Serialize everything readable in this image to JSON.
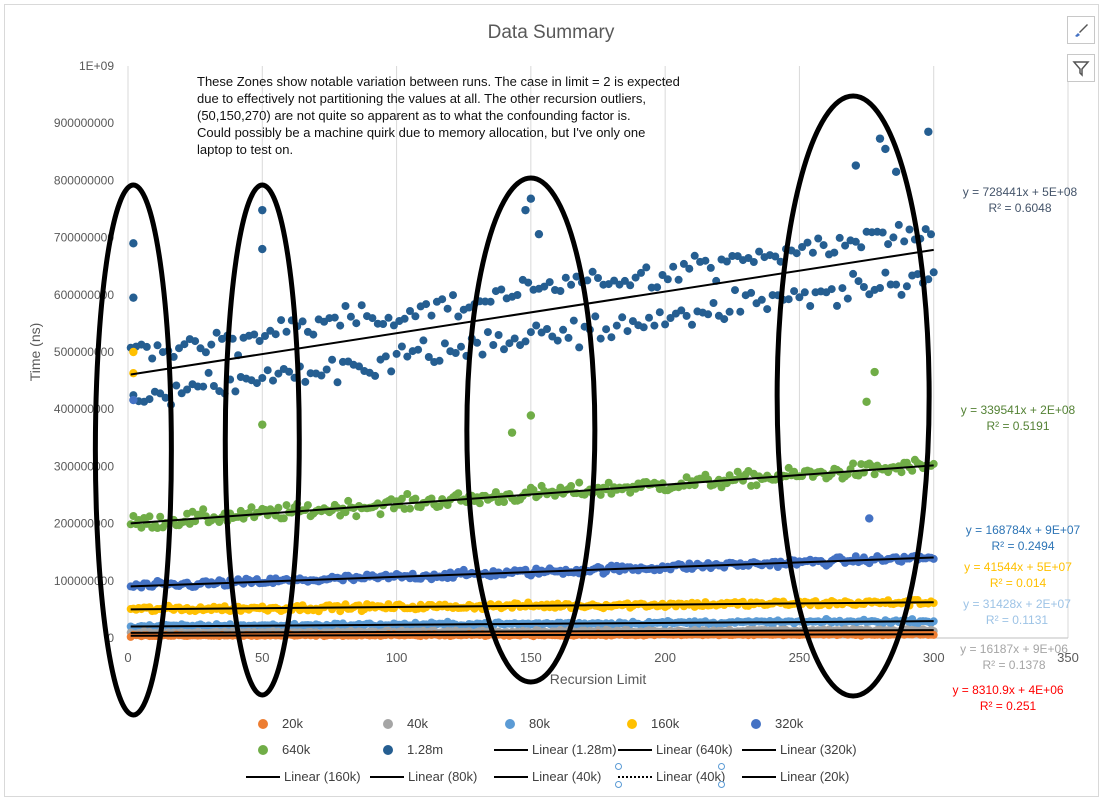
{
  "chart_data": {
    "type": "scatter",
    "title": "Data Summary",
    "xlabel": "Recursion Limit",
    "ylabel": "Time (ns)",
    "xlim": [
      0,
      350
    ],
    "ylim": [
      0,
      1000000000
    ],
    "x_ticks": [
      "0",
      "50",
      "100",
      "150",
      "200",
      "250",
      "300",
      "350"
    ],
    "y_ticks": [
      "0",
      "100000000",
      "200000000",
      "300000000",
      "400000000",
      "500000000",
      "600000000",
      "700000000",
      "800000000",
      "900000000",
      "1E+09"
    ],
    "grid": "vertical",
    "legend_position": "bottom",
    "x_range_of_points": [
      1,
      300
    ],
    "series": [
      {
        "name": "20k",
        "color": "#ed7d31",
        "slope": 8310.9,
        "intercept": 4000000,
        "r2": 0.251,
        "points_per_run": 300
      },
      {
        "name": "40k",
        "color": "#a5a5a5",
        "slope": 16187,
        "intercept": 9000000,
        "r2": 0.1378
      },
      {
        "name": "80k",
        "color": "#5b9bd5",
        "slope": 31428,
        "intercept": 20000000,
        "r2": 0.1131
      },
      {
        "name": "160k",
        "color": "#ffc000",
        "slope": 41544,
        "intercept": 50000000,
        "r2": 0.014
      },
      {
        "name": "320k",
        "color": "#4472c4",
        "slope": 168784,
        "intercept": 90000000,
        "r2": 0.2494
      },
      {
        "name": "640k",
        "color": "#70ad47",
        "slope": 339541,
        "intercept": 200000000,
        "r2": 0.5191
      },
      {
        "name": "1.28m",
        "color": "#255e91",
        "slope": 728441,
        "intercept": 460000000,
        "r2": 0.6048
      }
    ],
    "trendline_labels": [
      {
        "series": "1.28m",
        "equation": "y = 728441x + 5E+08",
        "r2_text": "R² = 0.6048",
        "color": "#44546a"
      },
      {
        "series": "640k",
        "equation": "y = 339541x + 2E+08",
        "r2_text": "R² = 0.5191",
        "color": "#548235"
      },
      {
        "series": "320k",
        "equation": "y = 168784x + 9E+07",
        "r2_text": "R² = 0.2494",
        "color": "#2e75b6"
      },
      {
        "series": "160k",
        "equation": "y = 41544x + 5E+07",
        "r2_text": "R² = 0.014",
        "color": "#ffc000"
      },
      {
        "series": "80k",
        "equation": "y = 31428x + 2E+07",
        "r2_text": "R² = 0.1131",
        "color": "#9dc3e6"
      },
      {
        "series": "40k",
        "equation": "y = 16187x + 9E+06",
        "r2_text": "R² = 0.1378",
        "color": "#a5a5a5"
      },
      {
        "series": "20k",
        "equation": "y = 8310.9x + 4E+06",
        "r2_text": "R² = 0.251",
        "color": "#ff0000"
      }
    ],
    "highlighted_zones_x": [
      2,
      50,
      150,
      270
    ],
    "outliers": [
      {
        "series": "1.28m",
        "x": 2,
        "y": 690000000
      },
      {
        "series": "1.28m",
        "x": 2,
        "y": 595000000
      },
      {
        "series": "1.28m",
        "x": 50,
        "y": 748000000
      },
      {
        "series": "1.28m",
        "x": 50,
        "y": 680000000
      },
      {
        "series": "1.28m",
        "x": 150,
        "y": 768000000
      },
      {
        "series": "1.28m",
        "x": 148,
        "y": 748000000
      },
      {
        "series": "1.28m",
        "x": 153,
        "y": 706000000
      },
      {
        "series": "1.28m",
        "x": 280,
        "y": 873000000
      },
      {
        "series": "1.28m",
        "x": 298,
        "y": 885000000
      },
      {
        "series": "1.28m",
        "x": 282,
        "y": 855000000
      },
      {
        "series": "1.28m",
        "x": 286,
        "y": 815000000
      },
      {
        "series": "1.28m",
        "x": 271,
        "y": 826000000
      },
      {
        "series": "640k",
        "x": 50,
        "y": 373000000
      },
      {
        "series": "640k",
        "x": 150,
        "y": 389000000
      },
      {
        "series": "640k",
        "x": 143,
        "y": 359000000
      },
      {
        "series": "640k",
        "x": 278,
        "y": 465000000
      },
      {
        "series": "640k",
        "x": 275,
        "y": 413000000
      },
      {
        "series": "160k",
        "x": 2,
        "y": 500000000
      },
      {
        "series": "160k",
        "x": 2,
        "y": 463000000
      },
      {
        "series": "320k",
        "x": 2,
        "y": 416000000
      },
      {
        "series": "320k",
        "x": 276,
        "y": 209000000
      }
    ]
  },
  "annotation_lines": [
    "These Zones show notable variation between runs. The case in limit = 2 is expected",
    "due to effectively not partitioning the values at all. The other recursion outliers,",
    "(50,150,270) are not quite so apparent as to what the confounding factor is.",
    "Could possibly be a machine quirk due to memory allocation, but I've only one",
    "laptop to test on."
  ],
  "legend": {
    "markers": [
      "20k",
      "40k",
      "80k",
      "160k",
      "320k",
      "640k",
      "1.28m"
    ],
    "lines": [
      "Linear (1.28m)",
      "Linear (640k)",
      "Linear (320k)",
      "Linear (160k)",
      "Linear (80k)",
      "Linear (40k)",
      "Linear (40k)",
      "Linear (20k)"
    ]
  },
  "toolbar": {
    "brush_icon": "brush-icon",
    "filter_icon": "filter-icon"
  }
}
